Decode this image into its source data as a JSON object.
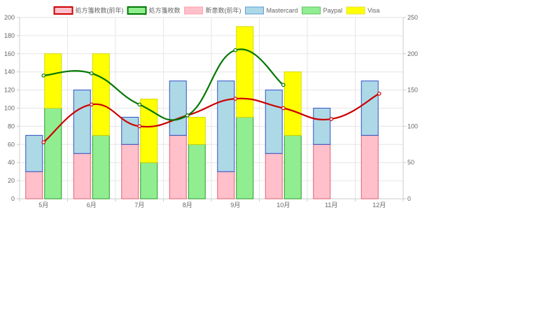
{
  "chart_data": {
    "type": "bar",
    "categories": [
      "5月",
      "6月",
      "7月",
      "8月",
      "9月",
      "10月",
      "11月",
      "12月"
    ],
    "stacks": [
      {
        "name": "stack-left",
        "segments": [
          {
            "series": "新患数(前年)",
            "values": [
              30,
              50,
              60,
              70,
              30,
              50,
              60,
              70
            ]
          },
          {
            "series": "Mastercard",
            "values": [
              40,
              70,
              30,
              60,
              100,
              70,
              40,
              60
            ]
          }
        ]
      },
      {
        "name": "stack-right",
        "segments": [
          {
            "series": "Paypal",
            "values": [
              100,
              70,
              40,
              60,
              90,
              70,
              null,
              null
            ]
          },
          {
            "series": "Visa",
            "values": [
              60,
              90,
              70,
              30,
              100,
              70,
              null,
              null
            ]
          }
        ]
      }
    ],
    "lines": [
      {
        "name": "処方箋枚数(前年)",
        "axis": "right",
        "values": [
          78,
          130,
          100,
          115,
          138,
          125,
          110,
          145
        ]
      },
      {
        "name": "処方箋枚数",
        "axis": "right",
        "values": [
          170,
          173,
          130,
          115,
          205,
          157,
          null,
          null
        ]
      }
    ],
    "y_left": {
      "min": 0,
      "max": 200,
      "ticks": [
        "0",
        "20",
        "40",
        "60",
        "80",
        "100",
        "120",
        "140",
        "160",
        "180",
        "200"
      ]
    },
    "y_right": {
      "min": 0,
      "max": 250,
      "ticks": [
        "0",
        "50",
        "100",
        "150",
        "200",
        "250"
      ]
    },
    "legend": {
      "position": "top",
      "items": [
        {
          "label": "処方箋枚数(前年)",
          "fill": "#ffc0cb",
          "stroke": "#cc0000",
          "bold": true
        },
        {
          "label": "処方箋枚数",
          "fill": "#90ee90",
          "stroke": "#007700",
          "bold": true
        },
        {
          "label": "新患数(前年)",
          "fill": "#ffc0cb",
          "stroke": "#ff9fae",
          "bold": false
        },
        {
          "label": "Mastercard",
          "fill": "#add8e6",
          "stroke": "#5b9bd5",
          "bold": false
        },
        {
          "label": "Paypal",
          "fill": "#90ee90",
          "stroke": "#60c060",
          "bold": false
        },
        {
          "label": "Visa",
          "fill": "#ffff00",
          "stroke": "#e0e040",
          "bold": false
        }
      ]
    },
    "colors": {
      "新患数(前年)": {
        "fill": "#ffc0cb",
        "stroke": "#e06070"
      },
      "Mastercard": {
        "fill": "#add8e6",
        "stroke": "#3050c8"
      },
      "Paypal": {
        "fill": "#90ee90",
        "stroke": "#2a9a2a"
      },
      "Visa": {
        "fill": "#ffff00",
        "stroke": "#d8d800"
      },
      "処方箋枚数(前年)": {
        "stroke": "#cc0000"
      },
      "処方箋枚数": {
        "stroke": "#007700"
      }
    },
    "grid": true
  }
}
